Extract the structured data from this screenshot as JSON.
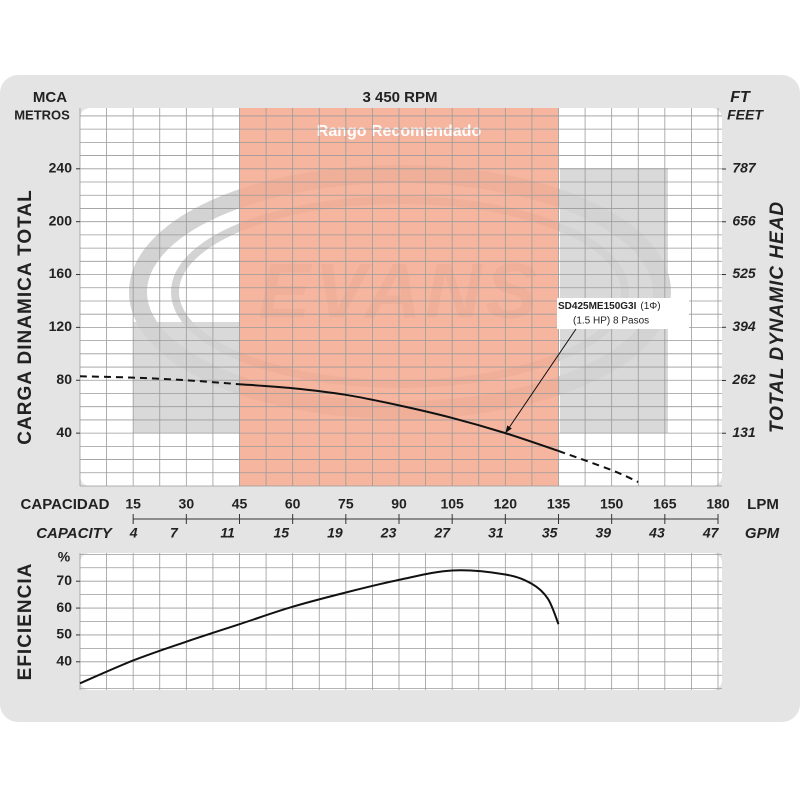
{
  "header": {
    "rpm": "3 450 RPM",
    "left_unit": "MCA",
    "left_unit_sub": "METROS",
    "right_unit": "FT",
    "right_unit_sub": "FEET"
  },
  "watermark": "EVANS",
  "chart_data": [
    {
      "type": "line",
      "y_label": "CARGA  DINAMICA  TOTAL",
      "y2_label": "TOTAL  DYNAMIC  HEAD",
      "x_label": "CAPACIDAD",
      "x_unit": "LPM",
      "x2_label": "CAPACITY",
      "x2_unit": "GPM",
      "xlim": [
        0,
        180
      ],
      "xticks": [
        15,
        30,
        45,
        60,
        75,
        90,
        105,
        120,
        135,
        150,
        165,
        180
      ],
      "x2lim": [
        0,
        47.55
      ],
      "x2ticks": [
        4,
        7,
        11,
        15,
        19,
        23,
        27,
        31,
        35,
        39,
        43,
        47
      ],
      "ylim": [
        0,
        286
      ],
      "yticks": [
        40,
        80,
        120,
        160,
        200,
        240
      ],
      "y2lim": [
        0,
        938.4
      ],
      "y2ticks": [
        131,
        262,
        394,
        525,
        656,
        787
      ],
      "grid": true,
      "minor_grid": {
        "x": 7.5,
        "y": 10
      },
      "recommended_range": {
        "label": "Rango Recomendado",
        "from": 45,
        "to": 135,
        "color": "#f5a88e"
      },
      "annotation": {
        "model": "SD425ME150G3I",
        "phase": "(1Φ)",
        "detail": "(1.5 HP) 8 Pasos",
        "x": 120,
        "y": 40
      },
      "x": [
        0,
        15,
        30,
        45,
        60,
        75,
        90,
        105,
        120,
        135,
        150,
        157.5
      ],
      "series": [
        {
          "color": "#111111",
          "values": [
            83,
            82,
            80,
            77,
            74,
            69,
            61,
            51.5,
            40,
            26.5,
            12,
            3
          ]
        }
      ]
    },
    {
      "type": "line",
      "y_label": "EFICIENCIA",
      "y_unit": "%",
      "xlim": [
        0,
        180
      ],
      "ylim": [
        29.5,
        80.5
      ],
      "yticks": [
        40,
        50,
        60,
        70
      ],
      "grid": true,
      "minor_grid": {
        "x": 7.5,
        "y": 5
      },
      "x": [
        0,
        15,
        30,
        45,
        60,
        75,
        90,
        105,
        120,
        127.5,
        132,
        135
      ],
      "series": [
        {
          "color": "#111111",
          "values": [
            32,
            40.5,
            47.5,
            54,
            60.5,
            65.8,
            70.5,
            74,
            72.5,
            69,
            63.5,
            54
          ]
        }
      ]
    }
  ]
}
